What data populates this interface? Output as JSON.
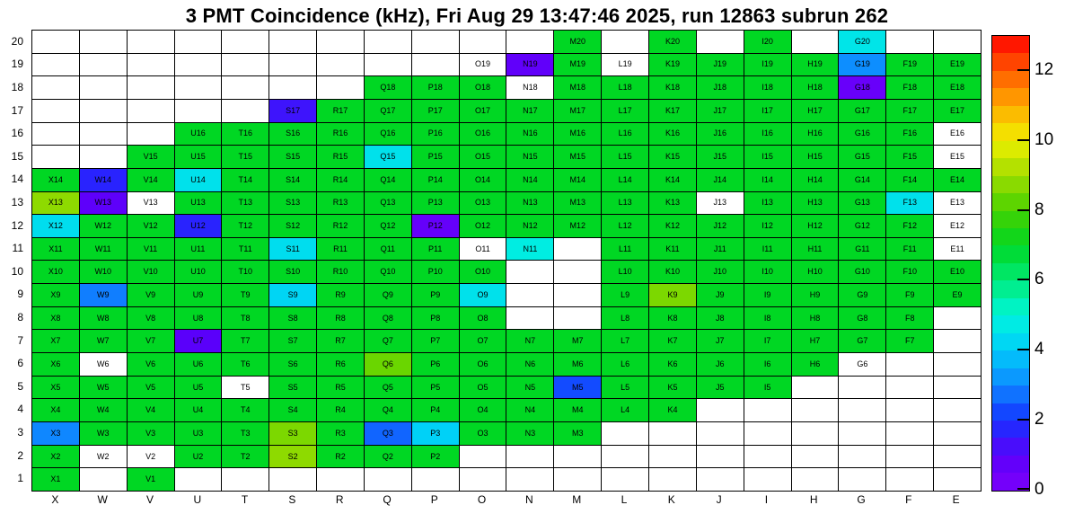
{
  "chart_data": {
    "type": "heatmap",
    "title": "3 PMT Coincidence (kHz), Fri Aug 29 13:47:46 2025, run 12863 subrun 262",
    "units": "kHz",
    "columns": [
      "X",
      "W",
      "V",
      "U",
      "T",
      "S",
      "R",
      "Q",
      "P",
      "O",
      "N",
      "M",
      "L",
      "K",
      "J",
      "I",
      "H",
      "G",
      "F",
      "E"
    ],
    "colorbar": {
      "min": 0,
      "max": 13,
      "ticks": [
        12,
        10,
        8,
        6,
        4,
        2,
        0
      ],
      "bands": 26
    },
    "colormap_stops": [
      [
        0,
        "#7d00fa"
      ],
      [
        1,
        "#5a00fa"
      ],
      [
        2,
        "#1432ff"
      ],
      [
        3,
        "#0f87ff"
      ],
      [
        4,
        "#00cdfa"
      ],
      [
        5,
        "#00f5dc"
      ],
      [
        6,
        "#00eb78"
      ],
      [
        7,
        "#00d723"
      ],
      [
        8,
        "#46d200"
      ],
      [
        9,
        "#a0dc00"
      ],
      [
        10,
        "#f0f000"
      ],
      [
        11,
        "#ffaa00"
      ],
      [
        12,
        "#ff5a00"
      ],
      [
        13,
        "#ff0000"
      ]
    ],
    "empty_color": "#ffffff",
    "rows": [
      {
        "row": 20,
        "cells": [
          null,
          null,
          null,
          null,
          null,
          null,
          null,
          null,
          null,
          null,
          null,
          7,
          null,
          7,
          null,
          7,
          null,
          4.6,
          null,
          null
        ]
      },
      {
        "row": 19,
        "cells": [
          null,
          null,
          null,
          null,
          null,
          null,
          null,
          null,
          null,
          "w",
          0.8,
          7,
          "w",
          7,
          7,
          7,
          7,
          3.1,
          7,
          7
        ]
      },
      {
        "row": 18,
        "cells": [
          null,
          null,
          null,
          null,
          null,
          null,
          null,
          7,
          7,
          7,
          "w",
          7,
          7,
          7,
          7,
          7,
          7,
          0.6,
          7,
          7
        ]
      },
      {
        "row": 17,
        "cells": [
          null,
          null,
          null,
          null,
          null,
          1.4,
          7,
          7,
          7,
          7,
          7,
          7,
          7,
          7,
          7,
          7,
          7,
          7,
          7,
          7
        ]
      },
      {
        "row": 16,
        "cells": [
          null,
          null,
          null,
          7,
          7,
          7,
          7,
          7,
          7,
          7,
          7,
          7,
          7,
          7,
          7,
          7,
          7,
          7,
          7,
          "w"
        ]
      },
      {
        "row": 15,
        "cells": [
          null,
          null,
          7,
          7,
          7,
          7,
          7,
          4.5,
          7,
          7,
          7,
          7,
          7,
          7,
          7,
          7,
          7,
          7,
          7,
          "w"
        ]
      },
      {
        "row": 14,
        "cells": [
          7,
          1.7,
          7,
          4.5,
          7,
          7,
          7,
          7,
          7,
          7,
          7,
          7,
          7,
          7,
          7,
          7,
          7,
          7,
          7,
          7
        ]
      },
      {
        "row": 13,
        "cells": [
          8.8,
          0.9,
          "w",
          7,
          7,
          7,
          7,
          7,
          7,
          7,
          7,
          7,
          7,
          7,
          "w",
          7,
          7,
          7,
          4.5,
          "w"
        ]
      },
      {
        "row": 12,
        "cells": [
          4.4,
          7,
          7,
          1.7,
          7,
          7,
          7,
          7,
          0.7,
          7,
          7,
          7,
          7,
          7,
          7,
          7,
          7,
          7,
          7,
          "w"
        ]
      },
      {
        "row": 11,
        "cells": [
          7,
          7,
          7,
          7,
          7,
          4.4,
          7,
          7,
          7,
          "w",
          4.8,
          null,
          7,
          7,
          7,
          7,
          7,
          7,
          7,
          "w"
        ]
      },
      {
        "row": 10,
        "cells": [
          7,
          7,
          7,
          7,
          7,
          7,
          7,
          7,
          7,
          7,
          null,
          null,
          7,
          7,
          7,
          7,
          7,
          7,
          7,
          7
        ]
      },
      {
        "row": 9,
        "cells": [
          7,
          2.9,
          7,
          7,
          7,
          4.2,
          7,
          7,
          7,
          4.5,
          null,
          null,
          7,
          8.6,
          7,
          7,
          7,
          7,
          7,
          7
        ]
      },
      {
        "row": 8,
        "cells": [
          7,
          7,
          7,
          7,
          7,
          7,
          7,
          7,
          7,
          7,
          null,
          null,
          7,
          7,
          7,
          7,
          7,
          7,
          7,
          null
        ]
      },
      {
        "row": 7,
        "cells": [
          7,
          7,
          7,
          1,
          7,
          7,
          7,
          7,
          7,
          7,
          7,
          7,
          7,
          7,
          7,
          7,
          7,
          7,
          7,
          null
        ]
      },
      {
        "row": 6,
        "cells": [
          7,
          "w",
          7,
          7,
          7,
          7,
          7,
          8.4,
          7,
          7,
          7,
          7,
          7,
          7,
          7,
          7,
          7,
          "w",
          null,
          null
        ]
      },
      {
        "row": 5,
        "cells": [
          7,
          7,
          7,
          7,
          "w",
          7,
          7,
          7,
          7,
          7,
          7,
          2.3,
          7,
          7,
          7,
          7,
          null,
          null,
          null,
          null
        ]
      },
      {
        "row": 4,
        "cells": [
          7,
          7,
          7,
          7,
          7,
          7,
          7,
          7,
          7,
          7,
          7,
          7,
          7,
          7,
          null,
          null,
          null,
          null,
          null,
          null
        ]
      },
      {
        "row": 3,
        "cells": [
          3,
          7,
          7,
          7,
          7,
          8.6,
          7,
          2.6,
          4.1,
          7,
          7,
          7,
          null,
          null,
          null,
          null,
          null,
          null,
          null,
          null
        ]
      },
      {
        "row": 2,
        "cells": [
          7,
          "w",
          "w",
          7,
          7,
          8.8,
          7,
          7,
          7,
          null,
          null,
          null,
          null,
          null,
          null,
          null,
          null,
          null,
          null,
          null
        ]
      },
      {
        "row": 1,
        "cells": [
          7,
          null,
          7,
          null,
          null,
          null,
          null,
          null,
          null,
          null,
          null,
          null,
          null,
          null,
          null,
          null,
          null,
          null,
          null,
          null
        ]
      }
    ]
  }
}
